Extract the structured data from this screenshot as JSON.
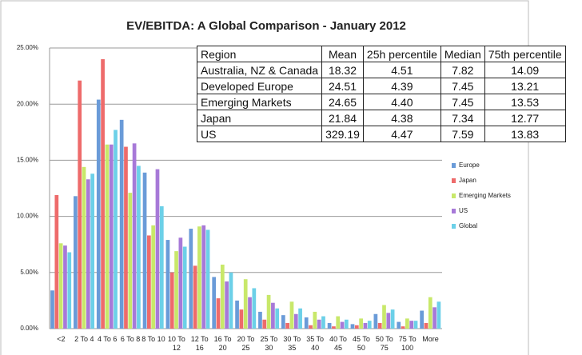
{
  "chart_data": {
    "type": "bar",
    "title": "EV/EBITDA: A Global Comparison - January 2012",
    "categories": [
      "<2",
      "2 To 4",
      "4 To 6",
      "6 To 8",
      "8 To 10",
      "10 To 12",
      "12 To 16",
      "16 To 20",
      "20 To 25",
      "25 To 30",
      "30 To 35",
      "35 To 40",
      "40 To 45",
      "45 To 50",
      "50 To 75",
      "75 To 100",
      "More"
    ],
    "series": [
      {
        "name": "Europe",
        "color": "#6a9bd8",
        "values": [
          3.4,
          11.8,
          20.4,
          18.6,
          13.9,
          7.9,
          8.9,
          4.6,
          2.5,
          1.5,
          1.2,
          1.0,
          0.5,
          0.4,
          1.3,
          0.6,
          1.6
        ]
      },
      {
        "name": "Japan",
        "color": "#ee6b6b",
        "values": [
          11.9,
          22.1,
          24.0,
          16.2,
          8.3,
          5.0,
          5.6,
          2.7,
          1.7,
          0.8,
          0.5,
          0.3,
          0.2,
          0.3,
          0.5,
          0.2,
          0.5
        ]
      },
      {
        "name": "Emerging Markets",
        "color": "#c8e86a",
        "values": [
          7.6,
          14.4,
          16.4,
          12.1,
          9.2,
          6.9,
          9.1,
          5.7,
          4.4,
          3.0,
          2.4,
          1.5,
          1.1,
          0.9,
          2.1,
          0.9,
          2.8
        ]
      },
      {
        "name": "US",
        "color": "#a779d8",
        "values": [
          7.4,
          13.3,
          16.4,
          16.5,
          14.2,
          8.1,
          9.2,
          4.2,
          2.8,
          2.3,
          1.3,
          0.8,
          0.6,
          0.5,
          1.4,
          0.7,
          1.9
        ]
      },
      {
        "name": "Global",
        "color": "#6cd0e8",
        "values": [
          6.8,
          13.8,
          17.7,
          14.5,
          10.9,
          7.3,
          8.8,
          5.0,
          3.6,
          1.8,
          1.8,
          1.1,
          0.8,
          0.7,
          1.7,
          0.7,
          2.4
        ]
      }
    ],
    "ylim": [
      0,
      25
    ],
    "yticks": [
      {
        "value": 0,
        "label": "0.00%"
      },
      {
        "value": 5,
        "label": "5.00%"
      },
      {
        "value": 10,
        "label": "10.00%"
      },
      {
        "value": 15,
        "label": "15.00%"
      },
      {
        "value": 20,
        "label": "20.00%"
      },
      {
        "value": 25,
        "label": "25.00%"
      }
    ],
    "grid": true,
    "legend": "right"
  },
  "table": {
    "columns": [
      "Region",
      "Mean",
      "25h percentile",
      "Median",
      "75th percentile"
    ],
    "rows": [
      [
        "Australia, NZ & Canada",
        "18.32",
        "4.51",
        "7.82",
        "14.09"
      ],
      [
        "Developed Europe",
        "24.51",
        "4.39",
        "7.45",
        "13.21"
      ],
      [
        "Emerging Markets",
        "24.65",
        "4.40",
        "7.45",
        "13.53"
      ],
      [
        "Japan",
        "21.84",
        "4.38",
        "7.34",
        "12.77"
      ],
      [
        "US",
        "329.19",
        "4.47",
        "7.59",
        "13.83"
      ]
    ]
  }
}
